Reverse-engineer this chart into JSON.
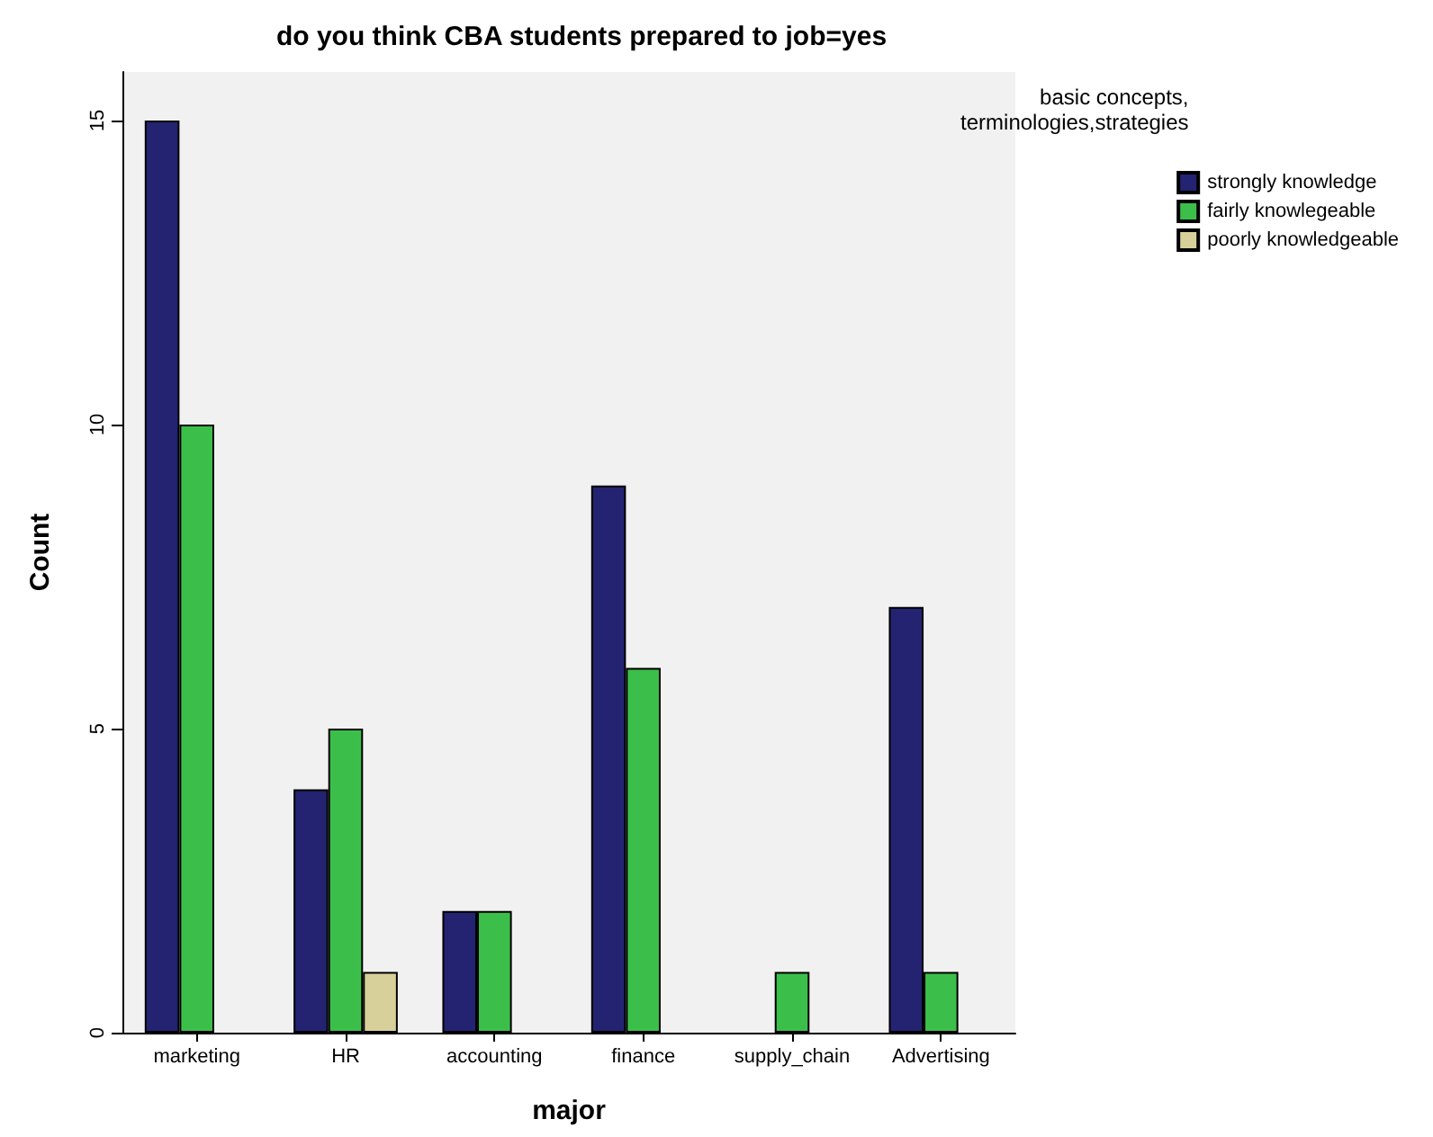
{
  "chart_data": {
    "type": "bar",
    "title": "do you think CBA students prepared to job=yes",
    "xlabel": "major",
    "ylabel": "Count",
    "legend_title": "basic concepts,\nterminologies,strategies",
    "categories": [
      "marketing",
      "HR",
      "accounting",
      "finance",
      "supply_chain",
      "Advertising"
    ],
    "series": [
      {
        "name": "strongly knowledge",
        "color": "#232372",
        "values": [
          15,
          4,
          2,
          9,
          null,
          7
        ]
      },
      {
        "name": "fairly knowlegeable",
        "color": "#3cbf4a",
        "values": [
          10,
          5,
          2,
          6,
          1,
          1
        ]
      },
      {
        "name": "poorly knowledgeable",
        "color": "#d8d09a",
        "values": [
          null,
          1,
          null,
          null,
          null,
          null
        ]
      }
    ],
    "ylim": [
      0,
      15.8
    ],
    "yticks": [
      0,
      5,
      10,
      15
    ],
    "grid": false,
    "legend": "top right"
  }
}
